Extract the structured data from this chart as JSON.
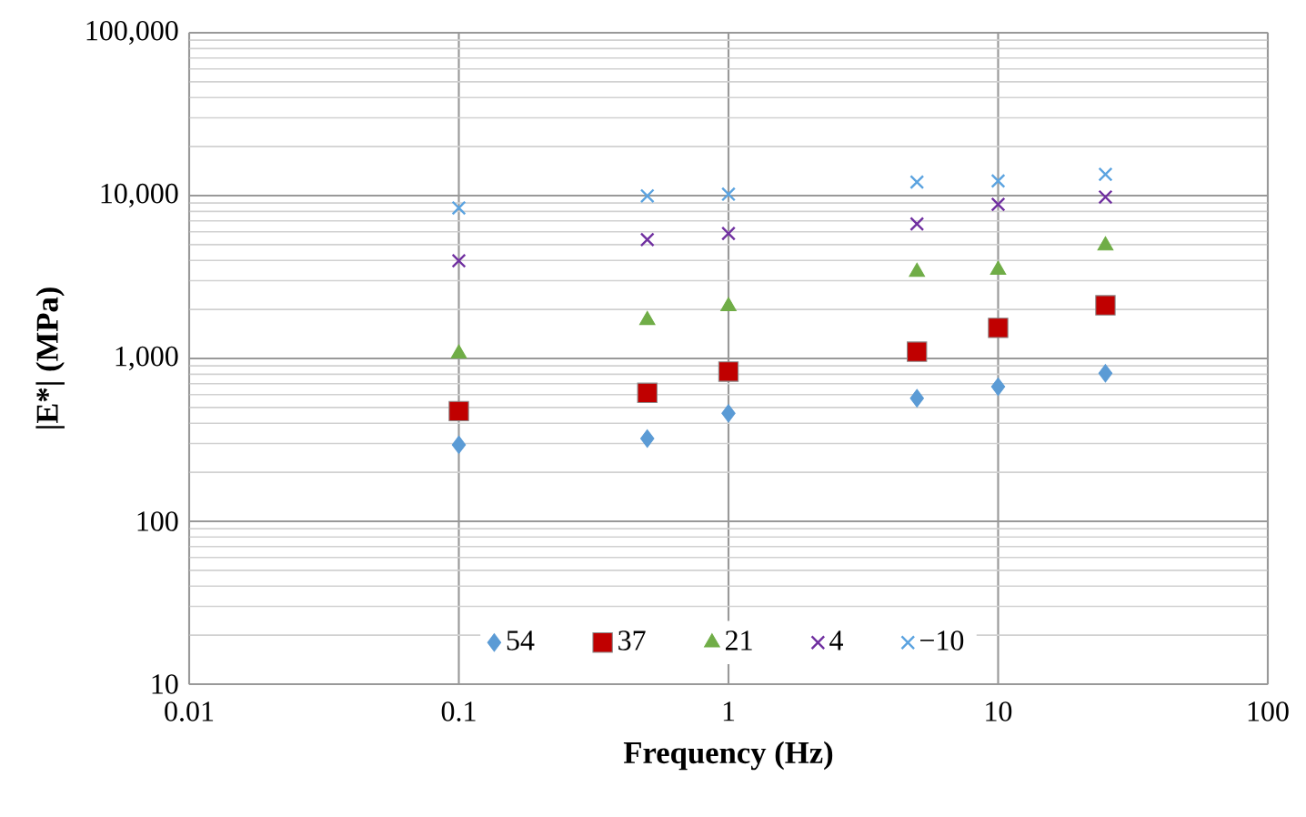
{
  "chart_data": {
    "type": "scatter",
    "xlabel": "Frequency (Hz)",
    "ylabel": "|E*| (MPa)",
    "log": "xy",
    "grid": true,
    "legend": "bottom",
    "xlim": [
      0.01,
      100
    ],
    "ylim": [
      10,
      100000
    ],
    "xticks": [
      0.01,
      0.1,
      1,
      10,
      100
    ],
    "yticks": [
      10,
      100,
      {
        "value": 1000,
        "label": "1,000"
      },
      {
        "value": 10000,
        "label": "10,000"
      },
      {
        "value": 100000,
        "label": "100,000"
      }
    ],
    "x": [
      0.1,
      0.5,
      1,
      5,
      10,
      25
    ],
    "series": [
      {
        "name": "54",
        "color": "#5b9bd5",
        "marker": "diamond",
        "values": [
          295,
          322,
          460,
          570,
          670,
          810
        ]
      },
      {
        "name": "37",
        "color": "#c00000",
        "marker": "square",
        "values": [
          475,
          615,
          830,
          1100,
          1540,
          2120
        ]
      },
      {
        "name": "21",
        "color": "#70ad47",
        "marker": "triangle",
        "values": [
          1070,
          1720,
          2090,
          3400,
          3500,
          4930
        ]
      },
      {
        "name": "4",
        "color": "#7030a0",
        "marker": "cross",
        "values": [
          3980,
          5370,
          5850,
          6700,
          8830,
          9800
        ]
      },
      {
        "name": "−10",
        "color": "#5ba3e0",
        "marker": "cross",
        "values": [
          8400,
          9960,
          10200,
          12100,
          12300,
          13500
        ]
      }
    ]
  }
}
